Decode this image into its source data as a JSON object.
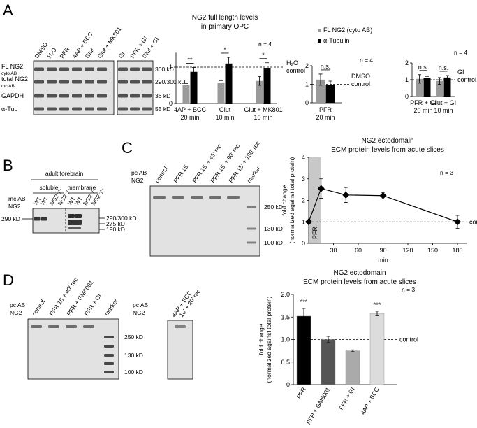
{
  "panel_labels": [
    "A",
    "B",
    "C",
    "D"
  ],
  "blot_a": {
    "lanes": [
      [
        "DMSO",
        "H₂O",
        "PFR",
        "4AP + BCC",
        "Glut",
        "Glut + MK801"
      ],
      [
        "GI",
        "PFR + GI",
        "Glut + GI"
      ]
    ],
    "rows": [
      {
        "label": "FL NG2",
        "sublabel": "cyto AB",
        "size": "300 kD"
      },
      {
        "label": "total NG2",
        "sublabel": "mc AB",
        "size": "290/300 kD"
      },
      {
        "label": "GAPDH",
        "size": "36 kD"
      },
      {
        "label": "α-Tub",
        "size": "55 kD"
      }
    ]
  },
  "blot_b": {
    "header": "adult forebrain",
    "groups": [
      "soluble",
      "membrane"
    ],
    "lanes": [
      "WT",
      "WT",
      "NG2⁻/⁻",
      "NG2⁻/⁻",
      "WT",
      "WT",
      "NG2⁻/⁻",
      "NG2⁻/⁻"
    ],
    "antibody": [
      "mc AB",
      "NG2"
    ],
    "left_size": "290 kD",
    "sizes": [
      "290/300 kD",
      "275 kD",
      "190 kD"
    ]
  },
  "blot_c": {
    "antibody": [
      "pc AB",
      "NG2"
    ],
    "lanes": [
      "control",
      "PFR 15'",
      "PFR 15' + 45' rec",
      "PFR 15' + 90' rec",
      "PFR 15' + 180' rec",
      "marker"
    ],
    "sizes": [
      "250 kD",
      "130 kD",
      "100 kD"
    ]
  },
  "blot_d": {
    "antibody": [
      "pc AB",
      "NG2"
    ],
    "lanes": [
      "control",
      "PFR 15 + 40' rec",
      "PFR + GM6001",
      "PFR + GI",
      "marker"
    ],
    "sizes": [
      "250 kD",
      "130 kD",
      "100 kD"
    ]
  },
  "blot_d2": {
    "antibody": [
      "pc AB",
      "NG2"
    ],
    "lanes": [
      "4AP + BCC",
      "10' + 20' rec"
    ]
  },
  "chart_data": [
    {
      "type": "bar",
      "title": [
        "NG2 full length levels",
        "in primary OPC"
      ],
      "categories": [
        [
          "4AP + BCC",
          "20 min"
        ],
        [
          "Glut",
          "10 min"
        ],
        [
          "Glut + MK801",
          "10 min"
        ]
      ],
      "series": [
        {
          "name": "FL NG2 (cyto AB)",
          "color": "#9a9a9a",
          "values": [
            0.5,
            0.57,
            0.62
          ],
          "errors": [
            0.05,
            0.06,
            0.12
          ]
        },
        {
          "name": "α-Tubulin",
          "color": "#000000",
          "values": [
            0.87,
            1.1,
            0.98
          ],
          "errors": [
            0.12,
            0.17,
            0.14
          ]
        }
      ],
      "ylim": [
        0,
        1.4
      ],
      "yticks": [
        0,
        1
      ],
      "reference_line": {
        "value": 1,
        "label": [
          "H₂O",
          "control"
        ]
      },
      "annotations": [
        "**",
        "*",
        "*"
      ],
      "n": "n = 4"
    },
    {
      "type": "bar",
      "categories": [
        [
          "PFR",
          "20 min"
        ]
      ],
      "series": [
        {
          "color": "#9a9a9a",
          "values": [
            1.25
          ],
          "errors": [
            0.3
          ]
        },
        {
          "color": "#000000",
          "values": [
            0.97
          ],
          "errors": [
            0.2
          ]
        }
      ],
      "ylim": [
        0,
        2
      ],
      "yticks": [
        0,
        1,
        2
      ],
      "reference_line": {
        "value": 1,
        "label": [
          "DMSO",
          "control"
        ]
      },
      "annotations": [
        "n.s."
      ],
      "n": "n = 4"
    },
    {
      "type": "bar",
      "categories": [
        [
          "PFR + GI",
          "20 min"
        ],
        [
          "Glut + GI",
          "10 min"
        ]
      ],
      "series": [
        {
          "color": "#9a9a9a",
          "values": [
            1.05,
            0.93
          ],
          "errors": [
            0.25,
            0.2
          ]
        },
        {
          "color": "#000000",
          "values": [
            1.1,
            1.13
          ],
          "errors": [
            0.1,
            0.12
          ]
        }
      ],
      "ylim": [
        0,
        2
      ],
      "yticks": [
        0,
        1,
        2
      ],
      "reference_line": {
        "value": 1,
        "label": [
          "GI",
          "control"
        ]
      },
      "annotations": [
        "n.s.",
        "n.s."
      ],
      "n": "n = 4"
    },
    {
      "type": "line",
      "title": [
        "NG2 ectodomain",
        "ECM protein levels from acute slices"
      ],
      "x": [
        0,
        15,
        45,
        90,
        180
      ],
      "values": [
        1,
        2.55,
        2.25,
        2.22,
        1.0
      ],
      "errors": [
        0,
        0.45,
        0.35,
        0.15,
        0.3
      ],
      "color": "#000000",
      "xlim": [
        0,
        180
      ],
      "ylim": [
        0,
        4
      ],
      "xticks": [
        30,
        60,
        90,
        120,
        150,
        180
      ],
      "yticks": [
        0,
        1,
        2,
        3,
        4
      ],
      "xlabel": "min",
      "ylabel": [
        "fold change",
        "(normalized against total protein)"
      ],
      "reference_line": {
        "value": 1,
        "label": "control"
      },
      "shaded": {
        "x": [
          0,
          15
        ],
        "label": "PFR"
      },
      "n": "n = 3"
    },
    {
      "type": "bar",
      "title": [
        "NG2 ectodomain",
        "ECM protein levels from acute slices"
      ],
      "categories": [
        "PFR",
        "PFR + GM6001",
        "PFR + GI",
        "4AP + BCC"
      ],
      "values": [
        1.52,
        1.0,
        0.75,
        1.58
      ],
      "errors": [
        0.17,
        0.07,
        0.02,
        0.05
      ],
      "colors": [
        "#000000",
        "#555555",
        "#aaaaaa",
        "#dcdcdc"
      ],
      "ylim": [
        0,
        2
      ],
      "yticks": [
        0,
        0.5,
        {
          "value": 1,
          "label": "1.0"
        },
        1.5,
        {
          "value": 2,
          "label": "2.0"
        }
      ],
      "ylabel": [
        "fold change",
        "(normalized against total protein)"
      ],
      "reference_line": {
        "value": 1,
        "label": "control"
      },
      "annotations": [
        "***",
        null,
        null,
        "***"
      ],
      "n": "n = 3"
    }
  ]
}
